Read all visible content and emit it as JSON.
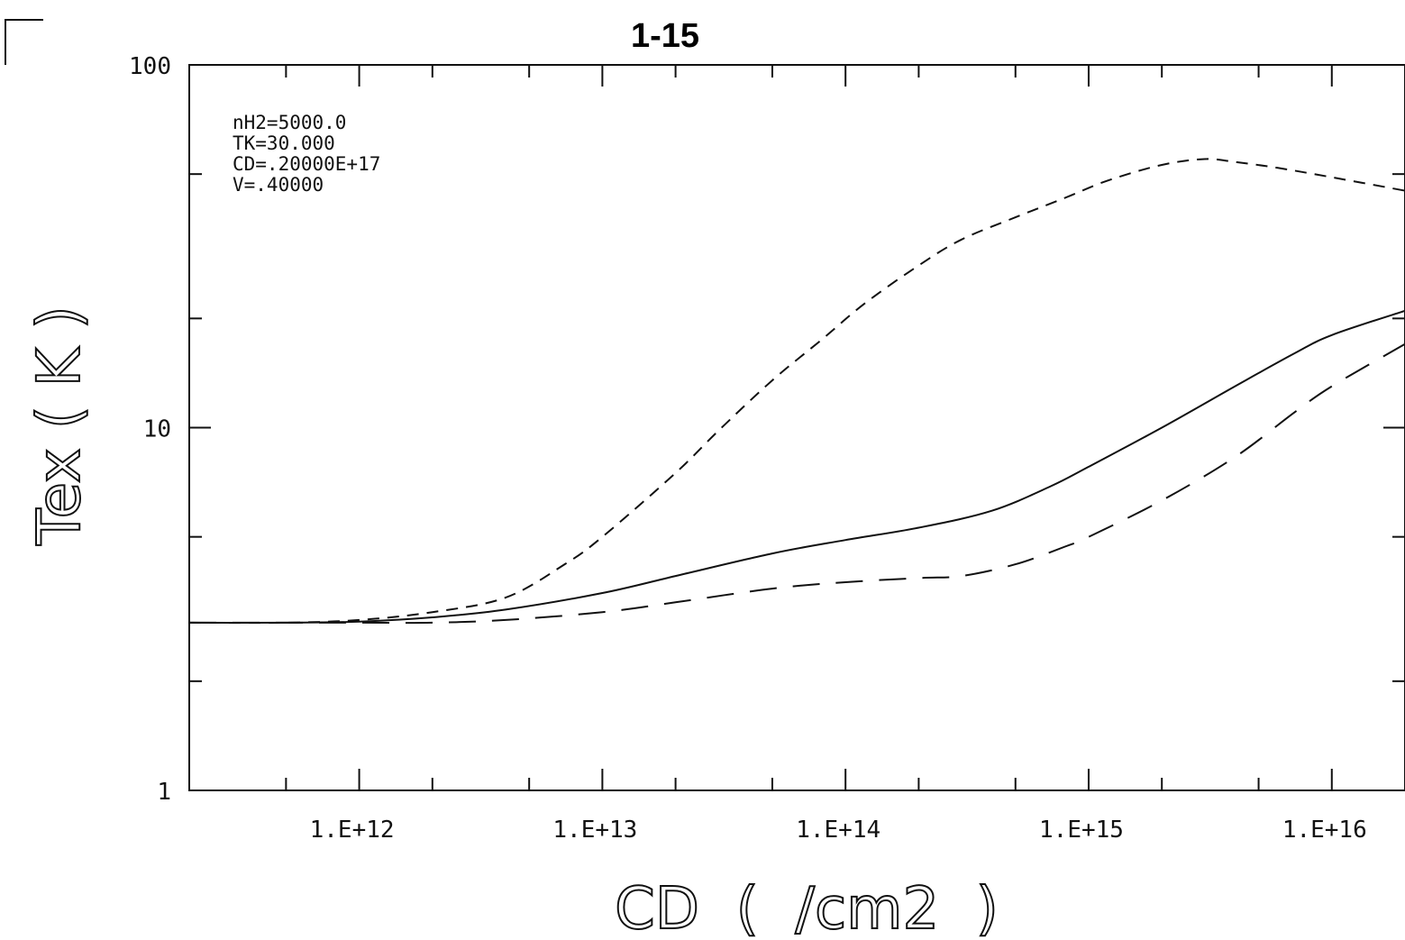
{
  "page_mark": "1-15",
  "chart_data": {
    "type": "line",
    "title": "",
    "xlabel": "CD  (  /cm2  )",
    "ylabel": "Tex ( K )",
    "xscale": "log",
    "yscale": "log",
    "xlim": [
      200000000000.0,
      2e+16
    ],
    "ylim": [
      1,
      100
    ],
    "x_ticks": [
      "1.E+12",
      "1.E+13",
      "1.E+14",
      "1.E+15",
      "1.E+16"
    ],
    "y_ticks": [
      "1",
      "10",
      "100"
    ],
    "grid": false,
    "annotations": [
      "nH2=5000.0",
      "TK=30.000",
      "CD=.20000E+17",
      "V=.40000"
    ],
    "series": [
      {
        "style": "short-dash",
        "x": [
          200000000000.0,
          500000000000.0,
          1000000000000.0,
          2000000000000.0,
          4000000000000.0,
          7000000000000.0,
          10000000000000.0,
          20000000000000.0,
          30000000000000.0,
          50000000000000.0,
          80000000000000.0,
          120000000000000.0,
          200000000000000.0,
          300000000000000.0,
          500000000000000.0,
          800000000000000.0,
          1200000000000000.0,
          2000000000000000.0,
          3000000000000000.0,
          4000000000000000.0,
          6000000000000000.0,
          1e+16,
          2e+16
        ],
        "y": [
          2.9,
          2.9,
          2.95,
          3.1,
          3.4,
          4.2,
          5.0,
          7.5,
          9.8,
          13.5,
          17.5,
          22,
          28,
          33,
          38,
          43,
          48,
          53,
          55,
          54,
          52,
          49,
          45
        ]
      },
      {
        "style": "solid",
        "x": [
          200000000000.0,
          500000000000.0,
          1000000000000.0,
          2000000000000.0,
          4000000000000.0,
          10000000000000.0,
          20000000000000.0,
          50000000000000.0,
          100000000000000.0,
          200000000000000.0,
          400000000000000.0,
          700000000000000.0,
          1000000000000000.0,
          2000000000000000.0,
          4000000000000000.0,
          7000000000000000.0,
          1e+16,
          2e+16
        ],
        "y": [
          2.9,
          2.9,
          2.92,
          3.0,
          3.15,
          3.5,
          3.9,
          4.5,
          4.9,
          5.3,
          5.9,
          6.9,
          7.8,
          10,
          13,
          16,
          18,
          21
        ]
      },
      {
        "style": "long-dash",
        "x": [
          200000000000.0,
          500000000000.0,
          1000000000000.0,
          2000000000000.0,
          4000000000000.0,
          10000000000000.0,
          20000000000000.0,
          50000000000000.0,
          100000000000000.0,
          200000000000000.0,
          300000000000000.0,
          500000000000000.0,
          800000000000000.0,
          1000000000000000.0,
          2000000000000000.0,
          4000000000000000.0,
          7000000000000000.0,
          1e+16,
          2e+16
        ],
        "y": [
          2.9,
          2.9,
          2.9,
          2.9,
          2.95,
          3.1,
          3.3,
          3.6,
          3.75,
          3.85,
          3.9,
          4.2,
          4.7,
          5.0,
          6.3,
          8.3,
          11,
          13,
          17
        ]
      }
    ]
  }
}
